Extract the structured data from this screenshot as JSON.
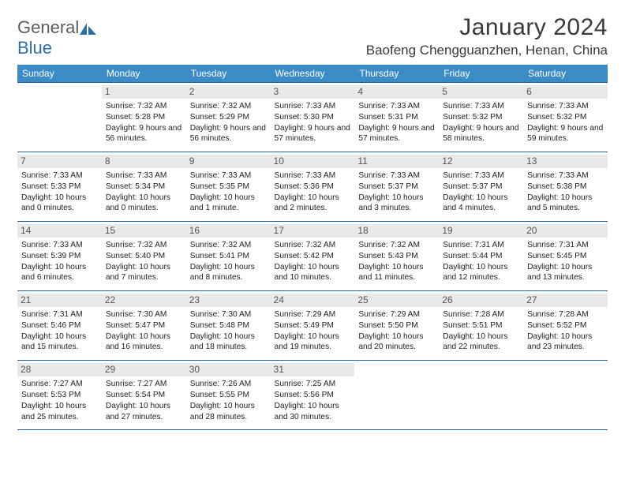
{
  "colors": {
    "header_bg": "#3b8bc7",
    "header_text": "#ffffff",
    "row_border": "#2760a0",
    "daynum_bg": "#e9e9e9",
    "daynum_text": "#555555",
    "body_text": "#222222",
    "logo_gray": "#5d5d5d",
    "logo_blue": "#2f6fa8"
  },
  "logo": {
    "part1": "General",
    "part2": "Blue"
  },
  "title": "January 2024",
  "location": "Baofeng Chengguanzhen, Henan, China",
  "dow": [
    "Sunday",
    "Monday",
    "Tuesday",
    "Wednesday",
    "Thursday",
    "Friday",
    "Saturday"
  ],
  "weeks": [
    [
      null,
      {
        "n": "1",
        "sr": "7:32 AM",
        "ss": "5:28 PM",
        "dl": "9 hours and 56 minutes."
      },
      {
        "n": "2",
        "sr": "7:32 AM",
        "ss": "5:29 PM",
        "dl": "9 hours and 56 minutes."
      },
      {
        "n": "3",
        "sr": "7:33 AM",
        "ss": "5:30 PM",
        "dl": "9 hours and 57 minutes."
      },
      {
        "n": "4",
        "sr": "7:33 AM",
        "ss": "5:31 PM",
        "dl": "9 hours and 57 minutes."
      },
      {
        "n": "5",
        "sr": "7:33 AM",
        "ss": "5:32 PM",
        "dl": "9 hours and 58 minutes."
      },
      {
        "n": "6",
        "sr": "7:33 AM",
        "ss": "5:32 PM",
        "dl": "9 hours and 59 minutes."
      }
    ],
    [
      {
        "n": "7",
        "sr": "7:33 AM",
        "ss": "5:33 PM",
        "dl": "10 hours and 0 minutes."
      },
      {
        "n": "8",
        "sr": "7:33 AM",
        "ss": "5:34 PM",
        "dl": "10 hours and 0 minutes."
      },
      {
        "n": "9",
        "sr": "7:33 AM",
        "ss": "5:35 PM",
        "dl": "10 hours and 1 minute."
      },
      {
        "n": "10",
        "sr": "7:33 AM",
        "ss": "5:36 PM",
        "dl": "10 hours and 2 minutes."
      },
      {
        "n": "11",
        "sr": "7:33 AM",
        "ss": "5:37 PM",
        "dl": "10 hours and 3 minutes."
      },
      {
        "n": "12",
        "sr": "7:33 AM",
        "ss": "5:37 PM",
        "dl": "10 hours and 4 minutes."
      },
      {
        "n": "13",
        "sr": "7:33 AM",
        "ss": "5:38 PM",
        "dl": "10 hours and 5 minutes."
      }
    ],
    [
      {
        "n": "14",
        "sr": "7:33 AM",
        "ss": "5:39 PM",
        "dl": "10 hours and 6 minutes."
      },
      {
        "n": "15",
        "sr": "7:32 AM",
        "ss": "5:40 PM",
        "dl": "10 hours and 7 minutes."
      },
      {
        "n": "16",
        "sr": "7:32 AM",
        "ss": "5:41 PM",
        "dl": "10 hours and 8 minutes."
      },
      {
        "n": "17",
        "sr": "7:32 AM",
        "ss": "5:42 PM",
        "dl": "10 hours and 10 minutes."
      },
      {
        "n": "18",
        "sr": "7:32 AM",
        "ss": "5:43 PM",
        "dl": "10 hours and 11 minutes."
      },
      {
        "n": "19",
        "sr": "7:31 AM",
        "ss": "5:44 PM",
        "dl": "10 hours and 12 minutes."
      },
      {
        "n": "20",
        "sr": "7:31 AM",
        "ss": "5:45 PM",
        "dl": "10 hours and 13 minutes."
      }
    ],
    [
      {
        "n": "21",
        "sr": "7:31 AM",
        "ss": "5:46 PM",
        "dl": "10 hours and 15 minutes."
      },
      {
        "n": "22",
        "sr": "7:30 AM",
        "ss": "5:47 PM",
        "dl": "10 hours and 16 minutes."
      },
      {
        "n": "23",
        "sr": "7:30 AM",
        "ss": "5:48 PM",
        "dl": "10 hours and 18 minutes."
      },
      {
        "n": "24",
        "sr": "7:29 AM",
        "ss": "5:49 PM",
        "dl": "10 hours and 19 minutes."
      },
      {
        "n": "25",
        "sr": "7:29 AM",
        "ss": "5:50 PM",
        "dl": "10 hours and 20 minutes."
      },
      {
        "n": "26",
        "sr": "7:28 AM",
        "ss": "5:51 PM",
        "dl": "10 hours and 22 minutes."
      },
      {
        "n": "27",
        "sr": "7:28 AM",
        "ss": "5:52 PM",
        "dl": "10 hours and 23 minutes."
      }
    ],
    [
      {
        "n": "28",
        "sr": "7:27 AM",
        "ss": "5:53 PM",
        "dl": "10 hours and 25 minutes."
      },
      {
        "n": "29",
        "sr": "7:27 AM",
        "ss": "5:54 PM",
        "dl": "10 hours and 27 minutes."
      },
      {
        "n": "30",
        "sr": "7:26 AM",
        "ss": "5:55 PM",
        "dl": "10 hours and 28 minutes."
      },
      {
        "n": "31",
        "sr": "7:25 AM",
        "ss": "5:56 PM",
        "dl": "10 hours and 30 minutes."
      },
      null,
      null,
      null
    ]
  ],
  "labels": {
    "sunrise": "Sunrise: ",
    "sunset": "Sunset: ",
    "daylight": "Daylight: "
  }
}
